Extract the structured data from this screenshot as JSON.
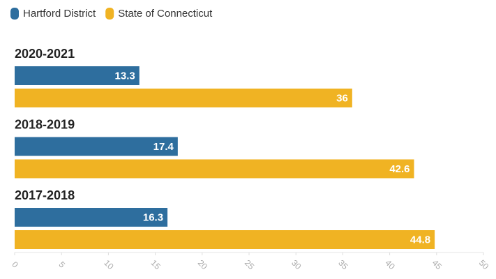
{
  "chart_data": {
    "type": "hbar",
    "categories": [
      "2020-2021",
      "2018-2019",
      "2017-2018"
    ],
    "series": [
      {
        "name": "Hartford District",
        "color": "#2e6e9e",
        "values": [
          13.3,
          17.4,
          16.3
        ]
      },
      {
        "name": "State of Connecticut",
        "color": "#f0b323",
        "values": [
          36,
          42.6,
          44.8
        ]
      }
    ],
    "xlim": [
      0,
      50
    ],
    "xticks": [
      0,
      5,
      10,
      15,
      20,
      25,
      30,
      35,
      40,
      45,
      50
    ],
    "grid": false,
    "legend": "top-left"
  }
}
